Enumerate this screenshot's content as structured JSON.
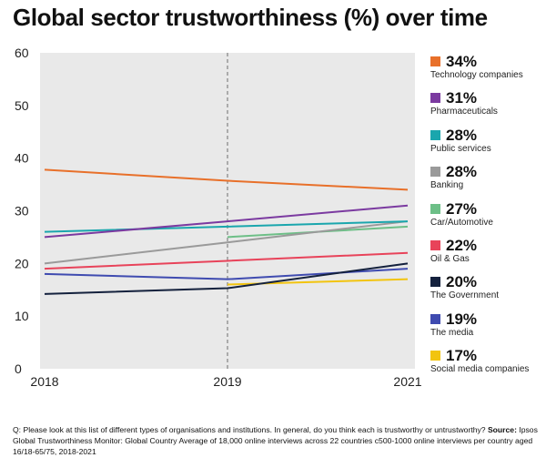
{
  "title": "Global sector trustworthiness (%) over time",
  "footnote": {
    "question": "Q: Please look at this list of different types of organisations and institutions. In general, do you think each is trustworthy or untrustworthy?",
    "source_label": "Source:",
    "source": "Ipsos Global Trustworthiness Monitor: Global Country Average of 18,000 online interviews across 22 countries c500-1000 online interviews per country aged 16/18-65/75, 2018-2021"
  },
  "chart_data": {
    "type": "line",
    "title": "Global sector trustworthiness (%) over time",
    "x": [
      "2018",
      "2019",
      "2021"
    ],
    "y_ticks": [
      "0",
      "10",
      "20",
      "30",
      "40",
      "50",
      "60"
    ],
    "ylim": [
      0,
      60
    ],
    "grid": false,
    "reference_line": "2019",
    "legend_position": "right",
    "series": [
      {
        "name": "Technology companies",
        "label": "34%",
        "color": "#e8702a",
        "values": [
          37.8,
          35.7,
          34
        ]
      },
      {
        "name": "Pharmaceuticals",
        "label": "31%",
        "color": "#7b3aa0",
        "values": [
          25,
          28,
          31
        ]
      },
      {
        "name": "Public services",
        "label": "28%",
        "color": "#1aa6ad",
        "values": [
          26,
          27,
          28
        ]
      },
      {
        "name": "Banking",
        "label": "28%",
        "color": "#9a9a9a",
        "values": [
          20,
          24,
          28
        ]
      },
      {
        "name": "Car/Automotive",
        "label": "27%",
        "color": "#6dbf87",
        "values": [
          null,
          25,
          27
        ]
      },
      {
        "name": "Oil & Gas",
        "label": "22%",
        "color": "#e8435a",
        "values": [
          19,
          20.5,
          22
        ]
      },
      {
        "name": "The Government",
        "label": "20%",
        "color": "#14213d",
        "values": [
          14.2,
          15.3,
          20
        ]
      },
      {
        "name": "The media",
        "label": "19%",
        "color": "#3f4bb0",
        "values": [
          18,
          17,
          19
        ]
      },
      {
        "name": "Social media companies",
        "label": "17%",
        "color": "#f2c40f",
        "values": [
          null,
          16,
          17
        ]
      }
    ]
  }
}
